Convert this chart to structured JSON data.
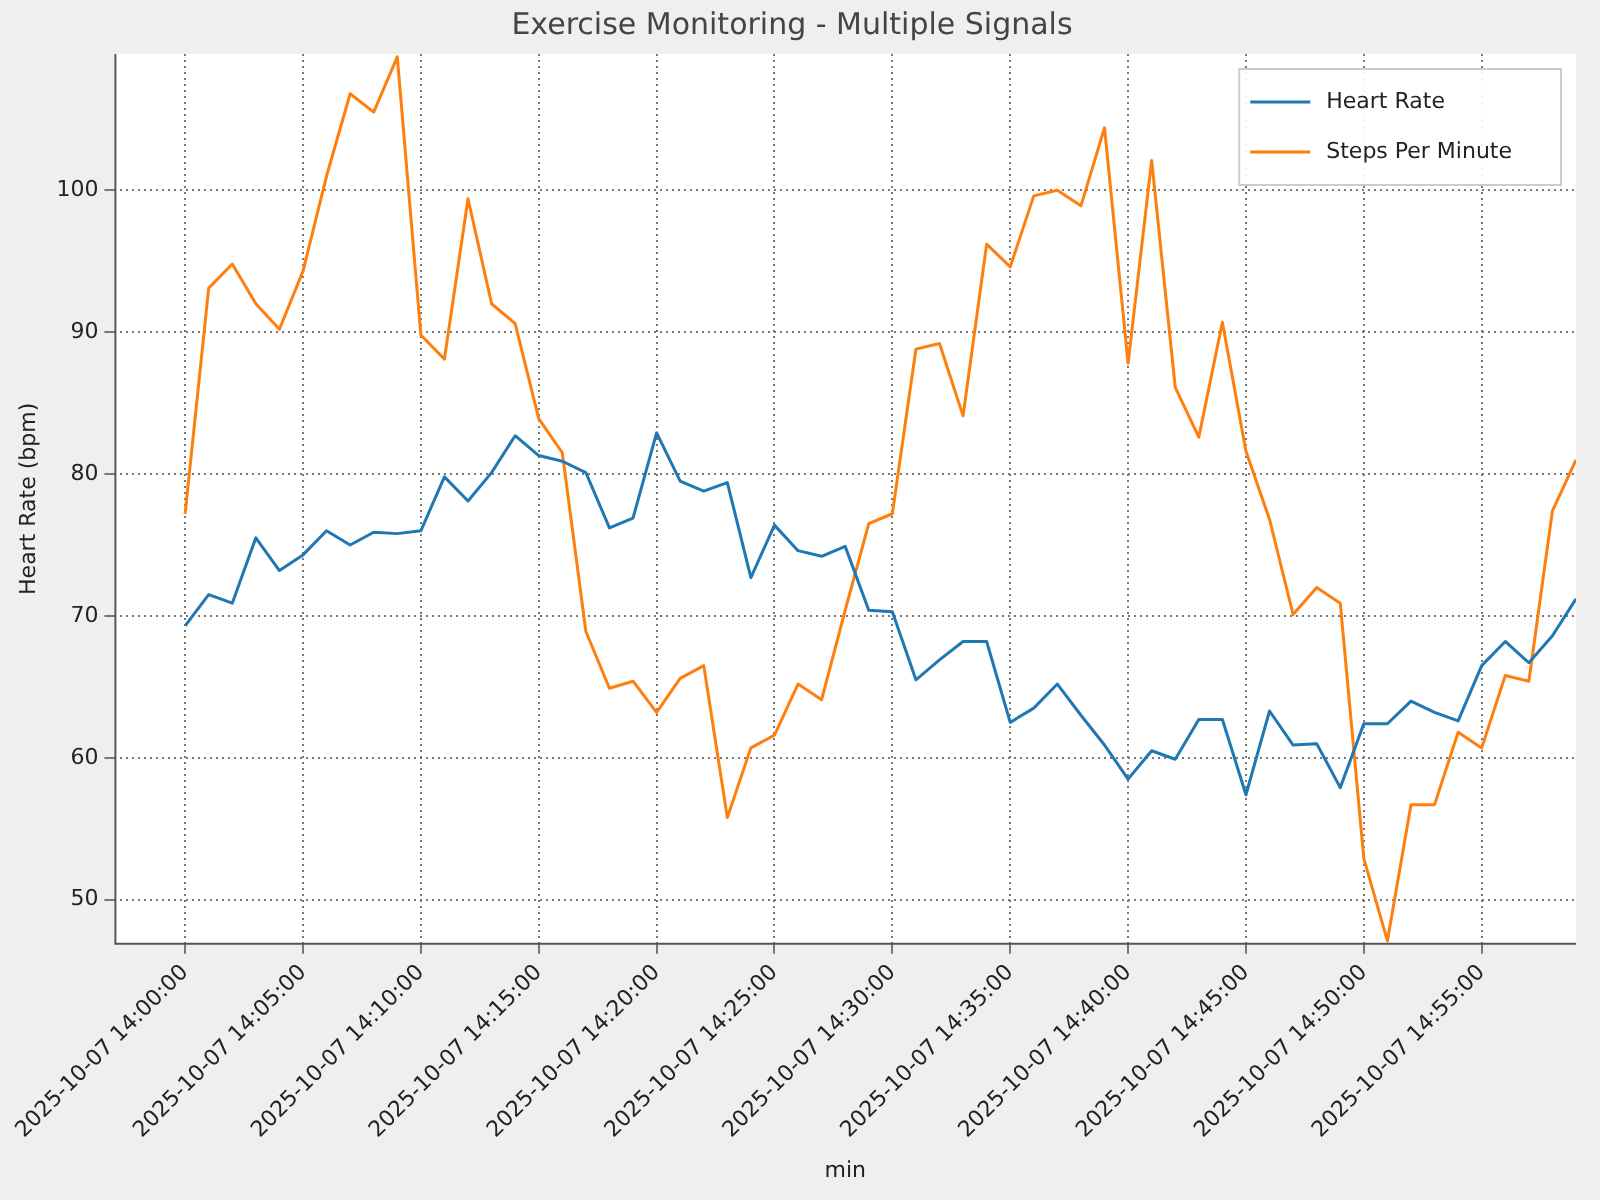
{
  "chart_data": {
    "type": "line",
    "title": "Exercise Monitoring - Multiple Signals",
    "xlabel": "min",
    "ylabel": "Heart Rate (bpm)",
    "x": [
      "2025-10-07T14:00",
      "2025-10-07T14:01",
      "2025-10-07T14:02",
      "2025-10-07T14:03",
      "2025-10-07T14:04",
      "2025-10-07T14:05",
      "2025-10-07T14:06",
      "2025-10-07T14:07",
      "2025-10-07T14:08",
      "2025-10-07T14:09",
      "2025-10-07T14:10",
      "2025-10-07T14:11",
      "2025-10-07T14:12",
      "2025-10-07T14:13",
      "2025-10-07T14:14",
      "2025-10-07T14:15",
      "2025-10-07T14:16",
      "2025-10-07T14:17",
      "2025-10-07T14:18",
      "2025-10-07T14:19",
      "2025-10-07T14:20",
      "2025-10-07T14:21",
      "2025-10-07T14:22",
      "2025-10-07T14:23",
      "2025-10-07T14:24",
      "2025-10-07T14:25",
      "2025-10-07T14:26",
      "2025-10-07T14:27",
      "2025-10-07T14:28",
      "2025-10-07T14:29",
      "2025-10-07T14:30",
      "2025-10-07T14:31",
      "2025-10-07T14:32",
      "2025-10-07T14:33",
      "2025-10-07T14:34",
      "2025-10-07T14:35",
      "2025-10-07T14:36",
      "2025-10-07T14:37",
      "2025-10-07T14:38",
      "2025-10-07T14:39",
      "2025-10-07T14:40",
      "2025-10-07T14:41",
      "2025-10-07T14:42",
      "2025-10-07T14:43",
      "2025-10-07T14:44",
      "2025-10-07T14:45",
      "2025-10-07T14:46",
      "2025-10-07T14:47",
      "2025-10-07T14:48",
      "2025-10-07T14:49",
      "2025-10-07T14:50",
      "2025-10-07T14:51",
      "2025-10-07T14:52",
      "2025-10-07T14:53",
      "2025-10-07T14:54",
      "2025-10-07T14:55",
      "2025-10-07T14:56",
      "2025-10-07T14:57",
      "2025-10-07T14:58",
      "2025-10-07T14:59"
    ],
    "series": [
      {
        "name": "Heart Rate",
        "color": "#1f77b4",
        "values": [
          69.3,
          71.5,
          70.9,
          75.5,
          73.2,
          74.3,
          76.0,
          75.0,
          75.9,
          75.8,
          76.0,
          79.8,
          78.1,
          80.1,
          82.7,
          81.3,
          80.9,
          80.1,
          76.2,
          76.9,
          82.9,
          79.5,
          78.8,
          79.4,
          72.7,
          76.4,
          74.6,
          74.2,
          74.9,
          70.4,
          70.3,
          65.5,
          66.9,
          68.2,
          68.2,
          62.5,
          63.5,
          65.2,
          63.0,
          60.9,
          58.5,
          60.5,
          59.9,
          62.7,
          62.7,
          57.4,
          63.3,
          60.9,
          61.0,
          57.9,
          62.4,
          62.4,
          64.0,
          63.2,
          62.6,
          66.5,
          68.2,
          66.7,
          68.6,
          71.2
        ]
      },
      {
        "name": "Steps Per Minute",
        "color": "#ff7f0e",
        "values": [
          77.2,
          93.1,
          94.8,
          92.0,
          90.2,
          94.3,
          101.0,
          106.8,
          105.5,
          109.4,
          89.8,
          88.1,
          99.4,
          92.0,
          90.6,
          83.9,
          81.5,
          68.9,
          64.9,
          65.4,
          63.2,
          65.6,
          66.5,
          55.8,
          60.7,
          61.6,
          65.2,
          64.1,
          70.4,
          76.5,
          77.2,
          88.8,
          89.2,
          84.1,
          96.2,
          94.6,
          99.6,
          100.0,
          98.9,
          104.4,
          87.8,
          102.1,
          86.1,
          82.6,
          90.7,
          81.6,
          76.8,
          70.1,
          72.0,
          70.9,
          52.9,
          47.1,
          56.7,
          56.7,
          61.8,
          60.7,
          65.8,
          65.4,
          77.4,
          81.0
        ]
      }
    ],
    "xlim": [
      "2025-10-07T13:57",
      "2025-10-07T14:59"
    ],
    "xticks": [
      {
        "value": "2025-10-07T14:00",
        "label": "2025-10-07 14:00:00"
      },
      {
        "value": "2025-10-07T14:05",
        "label": "2025-10-07 14:05:00"
      },
      {
        "value": "2025-10-07T14:10",
        "label": "2025-10-07 14:10:00"
      },
      {
        "value": "2025-10-07T14:15",
        "label": "2025-10-07 14:15:00"
      },
      {
        "value": "2025-10-07T14:20",
        "label": "2025-10-07 14:20:00"
      },
      {
        "value": "2025-10-07T14:25",
        "label": "2025-10-07 14:25:00"
      },
      {
        "value": "2025-10-07T14:30",
        "label": "2025-10-07 14:30:00"
      },
      {
        "value": "2025-10-07T14:35",
        "label": "2025-10-07 14:35:00"
      },
      {
        "value": "2025-10-07T14:40",
        "label": "2025-10-07 14:40:00"
      },
      {
        "value": "2025-10-07T14:45",
        "label": "2025-10-07 14:45:00"
      },
      {
        "value": "2025-10-07T14:50",
        "label": "2025-10-07 14:50:00"
      },
      {
        "value": "2025-10-07T14:55",
        "label": "2025-10-07 14:55:00"
      }
    ],
    "ylim": [
      46.9,
      109.6
    ],
    "yticks": [
      50,
      60,
      70,
      80,
      90,
      100
    ],
    "grid": true,
    "legend": "top right",
    "marker": "none",
    "line_style": "solid"
  }
}
